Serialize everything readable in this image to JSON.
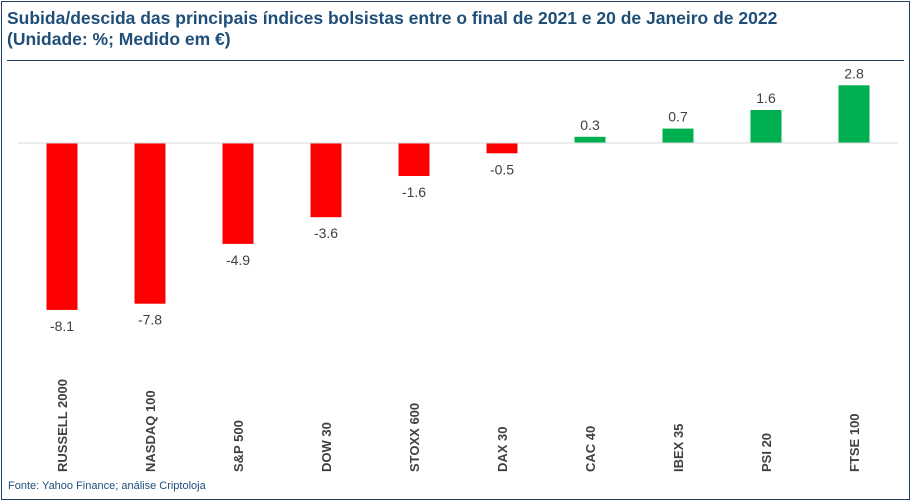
{
  "title_line1": "Subida/descida das principais índices bolsistas entre o final de 2021 e 20 de Janeiro de 2022",
  "title_line2": "(Unidade: %; Medido em €)",
  "source": "Fonte: Yahoo Finance; análise Criptoloja",
  "colors": {
    "negative": "#ff0000",
    "positive": "#00b050",
    "title": "#1f4e79",
    "frame": "#1f3f66",
    "baseline": "#d9d9d9",
    "label": "#404040"
  },
  "chart_data": {
    "type": "bar",
    "categories": [
      "RUSSELL 2000",
      "NASDAQ 100",
      "S&P 500",
      "DOW 30",
      "STOXX 600",
      "DAX 30",
      "CAC 40",
      "IBEX 35",
      "PSI 20",
      "FTSE 100"
    ],
    "values": [
      -8.1,
      -7.8,
      -4.9,
      -3.6,
      -1.6,
      -0.5,
      0.3,
      0.7,
      1.6,
      2.8
    ],
    "data_labels": [
      "-8.1",
      "-7.8",
      "-4.9",
      "-3.6",
      "-1.6",
      "-0.5",
      "0.3",
      "0.7",
      "1.6",
      "2.8"
    ],
    "title": "Subida/descida das principais índices bolsistas entre o final de 2021 e 20 de Janeiro de 2022",
    "subtitle": "(Unidade: %; Medido em €)",
    "xlabel": "",
    "ylabel": "",
    "grid": false,
    "legend": "none"
  }
}
